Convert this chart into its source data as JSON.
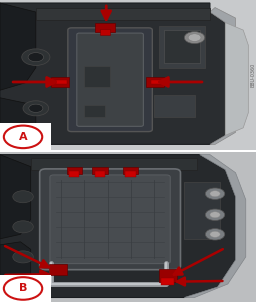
{
  "fig_width": 2.56,
  "fig_height": 3.02,
  "dpi": 100,
  "bg_color_A": "#c2c4c6",
  "bg_color_B": "#b8babb",
  "label_color": "#cc1111",
  "arrow_color": "#aa0000",
  "watermark": "B8U-0360",
  "watermark_color": "#666666",
  "dark_body": "#2a2d30",
  "dark_body2": "#222528",
  "mid_gray": "#3e4245",
  "light_gray": "#5a5e62",
  "silver": "#8a8e92",
  "panel_color": "#484c50",
  "edge_silver": "#9a9ea2"
}
